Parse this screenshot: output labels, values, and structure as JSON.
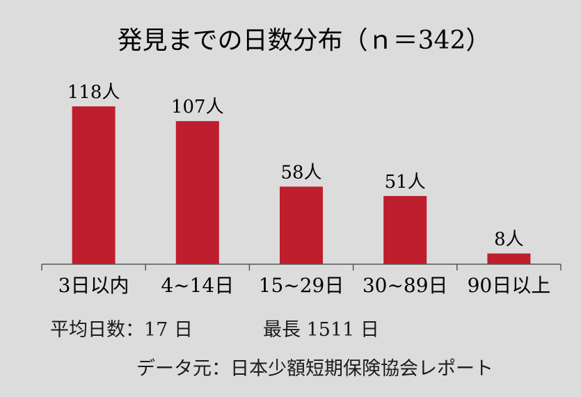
{
  "chart_data": {
    "type": "bar",
    "title": "発見までの日数分布（ｎ＝342）",
    "categories": [
      "3日以内",
      "4~14日",
      "15~29日",
      "30~89日",
      "90日以上"
    ],
    "values": [
      118,
      107,
      58,
      51,
      8
    ],
    "value_labels": [
      "118人",
      "107人",
      "58人",
      "51人",
      "8人"
    ],
    "xlabel": "",
    "ylabel": "",
    "ylim": [
      0,
      118
    ],
    "grid": false,
    "legend": "none",
    "bar_color": "#be1e2d"
  },
  "notes": {
    "average": "平均日数：17 日",
    "longest": "最長 1511 日",
    "source": "データ元：日本少額短期保険協会レポート"
  },
  "colors": {
    "background": "#dcdcdc",
    "bar": "#be1e2d",
    "axis": "#555555",
    "text": "#1a1a1a"
  }
}
